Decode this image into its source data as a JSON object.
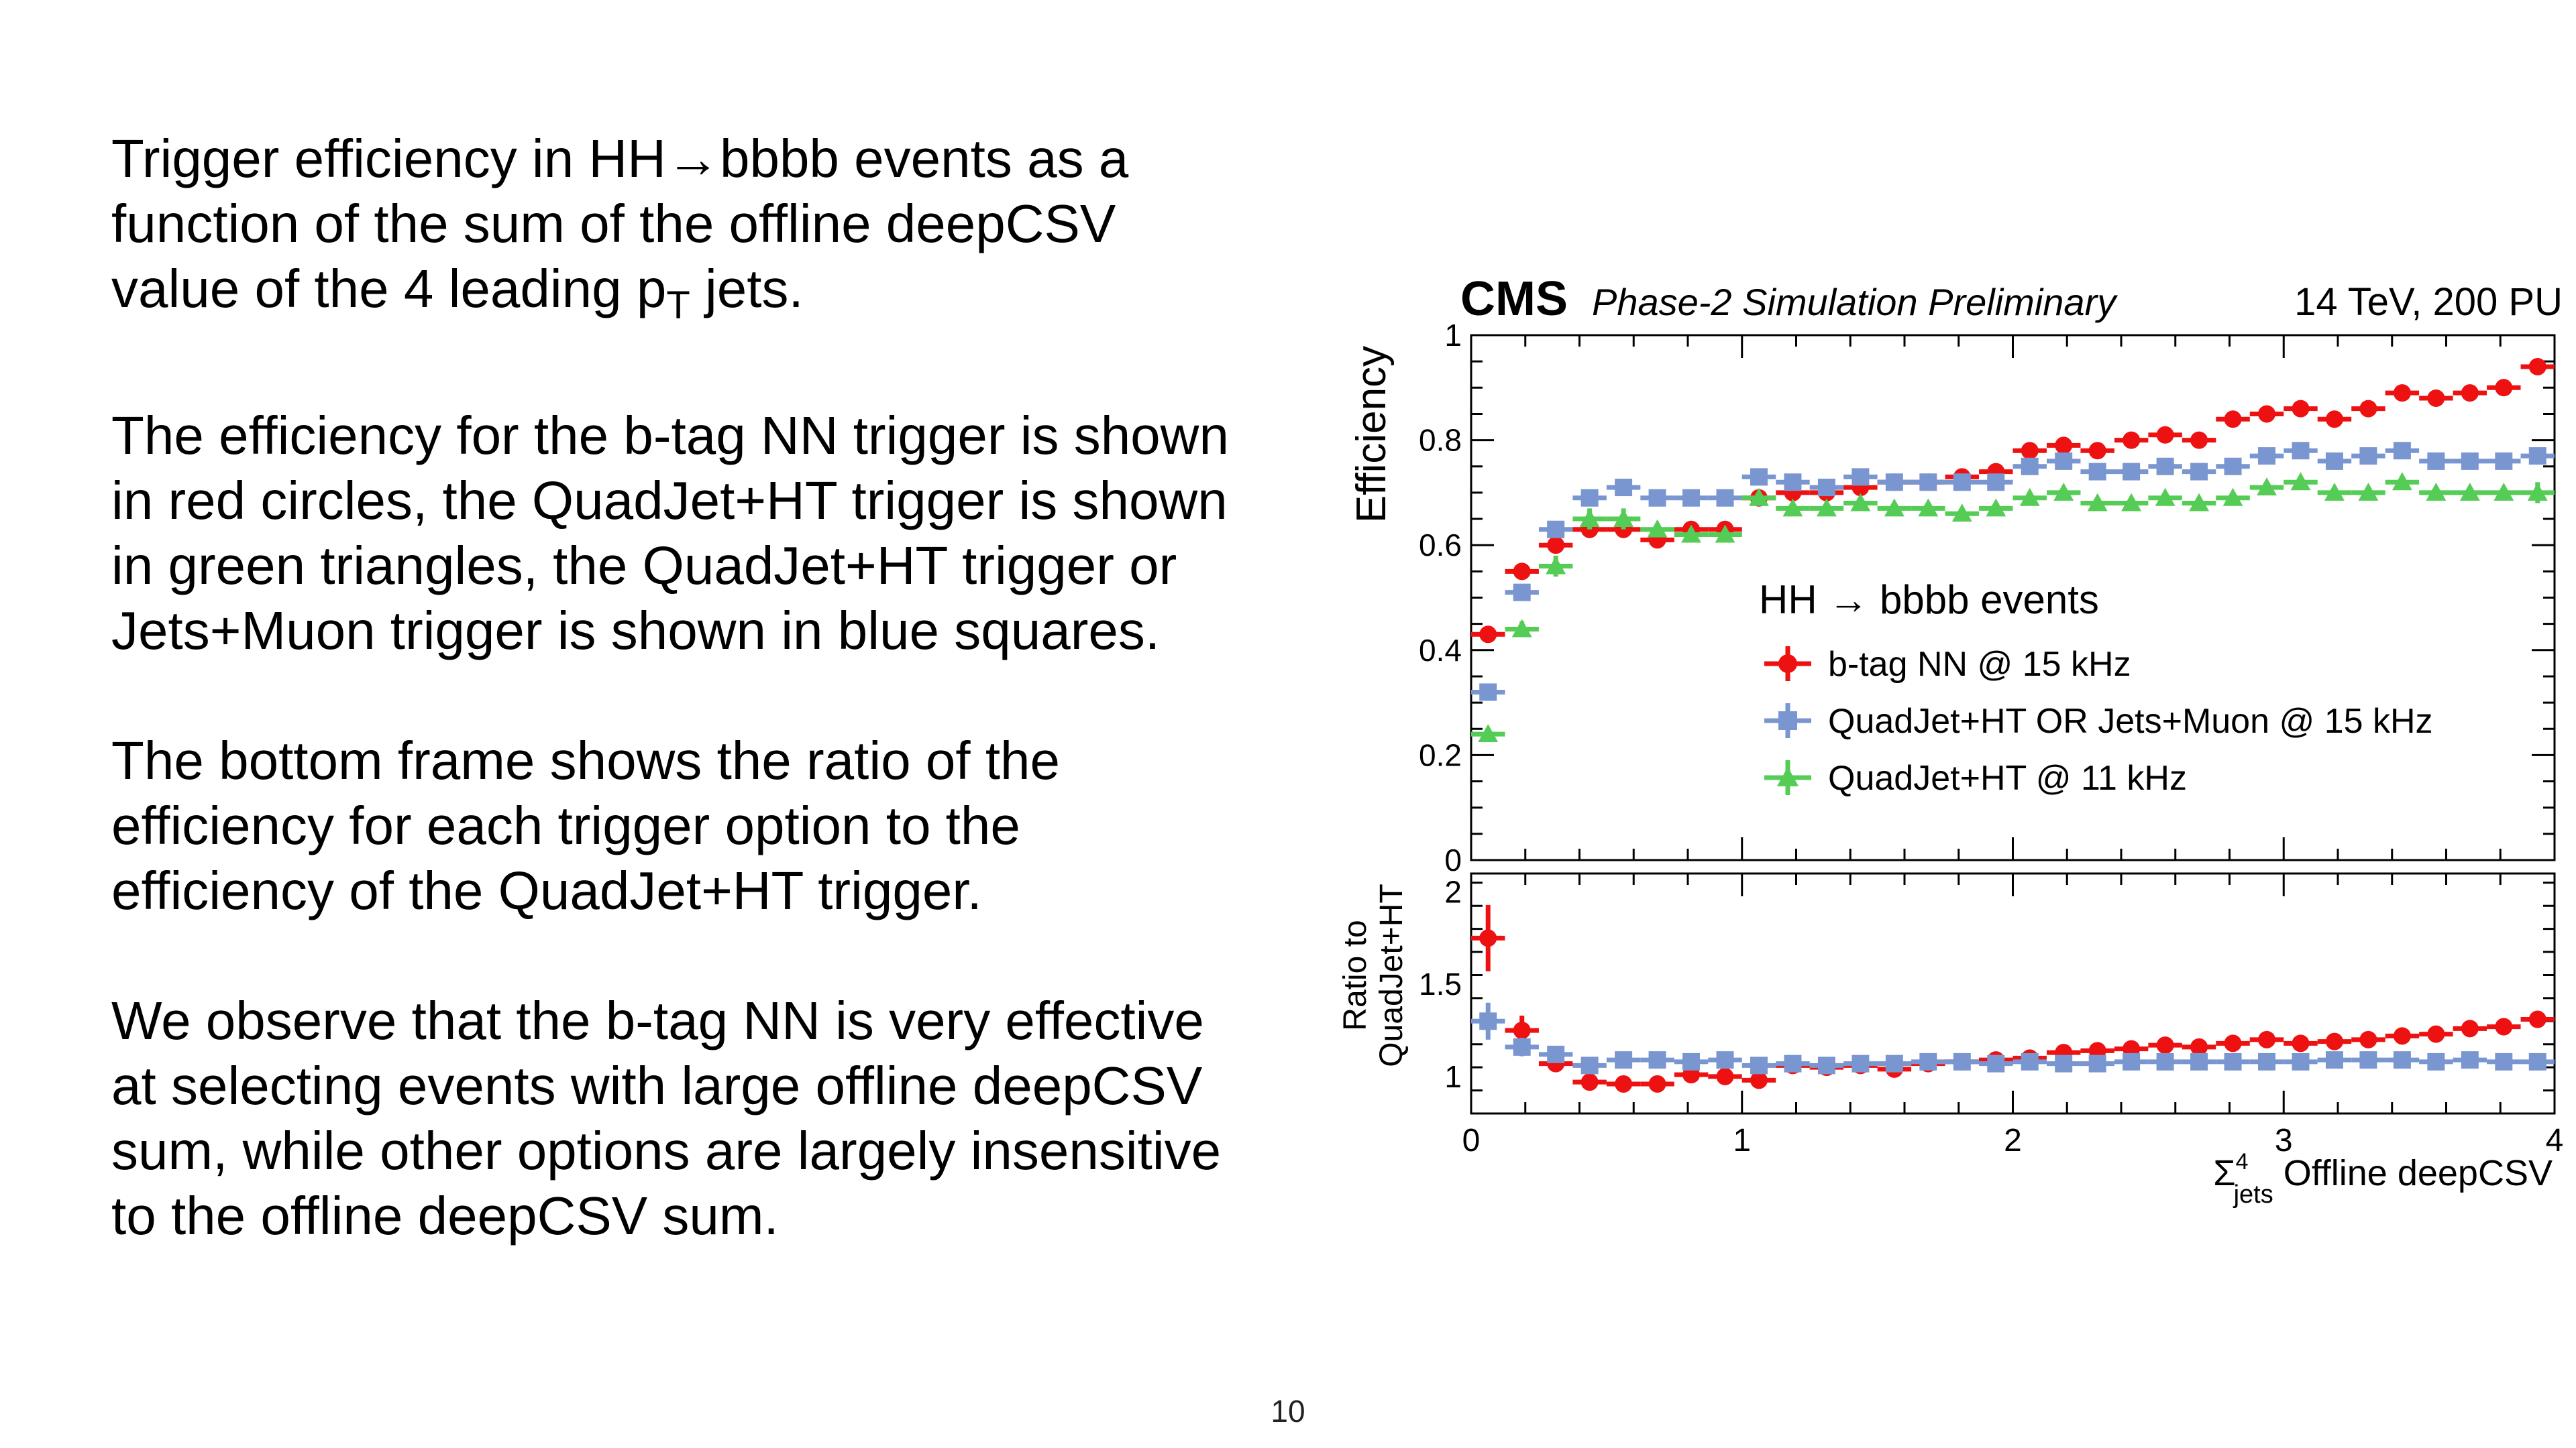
{
  "slide": {
    "paragraphs": [
      {
        "before": "Trigger efficiency in HH→bbbb events as a function of the sum of the offline deepCSV value of the 4 leading p",
        "sub": "T",
        "after": " jets."
      },
      {
        "before": "The efficiency for the b-tag NN trigger is shown in red circles, the QuadJet+HT trigger is shown in green triangles, the QuadJet+HT trigger or Jets+Muon trigger is shown in blue squares.",
        "sub": "",
        "after": ""
      },
      {
        "before": "The bottom frame shows the ratio of the efficiency for each trigger option to the efficiency of the QuadJet+HT trigger.",
        "sub": "",
        "after": ""
      },
      {
        "before": "We observe that the b-tag NN is very effective at selecting events with large offline deepCSV sum, while other options are largely insensitive to the offline deepCSV sum.",
        "sub": "",
        "after": ""
      }
    ],
    "page_number": "10"
  },
  "chart_data": {
    "type": "scatter",
    "header": {
      "experiment": "CMS",
      "subtitle": "Phase-2 Simulation Preliminary",
      "conditions": "14 TeV, 200 PU"
    },
    "legend_title": "HH → bbbb events",
    "legend_position": "center",
    "xlabel": "Σjets4 Offline deepCSV",
    "xlabel_parts": {
      "sigma": "Σ",
      "sup": "4",
      "sub": "jets",
      "rest": " Offline deepCSV"
    },
    "xlim": [
      0,
      4
    ],
    "x_bin_width": 0.125,
    "x_ticks": [
      "0",
      "1",
      "2",
      "3",
      "4"
    ],
    "x_tick_values": [
      0,
      1,
      2,
      3,
      4
    ],
    "x": [
      0.0625,
      0.1875,
      0.3125,
      0.4375,
      0.5625,
      0.6875,
      0.8125,
      0.9375,
      1.0625,
      1.1875,
      1.3125,
      1.4375,
      1.5625,
      1.6875,
      1.8125,
      1.9375,
      2.0625,
      2.1875,
      2.3125,
      2.4375,
      2.5625,
      2.6875,
      2.8125,
      2.9375,
      3.0625,
      3.1875,
      3.3125,
      3.4375,
      3.5625,
      3.6875,
      3.8125,
      3.9375
    ],
    "top_panel": {
      "ylabel": "Efficiency",
      "ylim": [
        0,
        1
      ],
      "y_ticks": [
        "0",
        "0.2",
        "0.4",
        "0.6",
        "0.8",
        "1"
      ],
      "y_tick_values": [
        0,
        0.2,
        0.4,
        0.6,
        0.8,
        1
      ],
      "series": [
        {
          "name": "b-tag NN @ 15 kHz",
          "color": "#ee1111",
          "marker": "circle",
          "values": [
            0.43,
            0.55,
            0.6,
            0.63,
            0.63,
            0.61,
            0.63,
            0.63,
            0.69,
            0.7,
            0.7,
            0.71,
            0.72,
            0.72,
            0.73,
            0.74,
            0.78,
            0.79,
            0.78,
            0.8,
            0.81,
            0.8,
            0.84,
            0.85,
            0.86,
            0.84,
            0.86,
            0.89,
            0.88,
            0.89,
            0.9,
            0.94
          ],
          "errors": [
            0.012,
            0.012,
            0.01,
            0.01,
            0.01,
            0.01,
            0.01,
            0.01,
            0.01,
            0.01,
            0.01,
            0.01,
            0.01,
            0.01,
            0.01,
            0.01,
            0.01,
            0.01,
            0.01,
            0.01,
            0.01,
            0.01,
            0.01,
            0.01,
            0.01,
            0.01,
            0.01,
            0.01,
            0.01,
            0.01,
            0.01,
            0.01
          ]
        },
        {
          "name": "QuadJet+HT OR Jets+Muon @ 15 kHz",
          "color": "#7a96d0",
          "marker": "square",
          "values": [
            0.32,
            0.51,
            0.63,
            0.69,
            0.71,
            0.69,
            0.69,
            0.69,
            0.73,
            0.72,
            0.71,
            0.73,
            0.72,
            0.72,
            0.72,
            0.72,
            0.75,
            0.76,
            0.74,
            0.74,
            0.75,
            0.74,
            0.75,
            0.77,
            0.78,
            0.76,
            0.77,
            0.78,
            0.76,
            0.76,
            0.76,
            0.77
          ],
          "errors": [
            0.015,
            0.015,
            0.012,
            0.01,
            0.01,
            0.01,
            0.01,
            0.01,
            0.01,
            0.01,
            0.01,
            0.01,
            0.01,
            0.01,
            0.01,
            0.01,
            0.01,
            0.01,
            0.01,
            0.01,
            0.01,
            0.01,
            0.01,
            0.01,
            0.01,
            0.01,
            0.01,
            0.01,
            0.01,
            0.01,
            0.01,
            0.015
          ]
        },
        {
          "name": "QuadJet+HT @ 11 kHz",
          "color": "#55cc55",
          "marker": "triangle",
          "values": [
            0.24,
            0.44,
            0.56,
            0.65,
            0.65,
            0.63,
            0.62,
            0.62,
            0.69,
            0.67,
            0.67,
            0.68,
            0.67,
            0.67,
            0.66,
            0.67,
            0.69,
            0.7,
            0.68,
            0.68,
            0.69,
            0.68,
            0.69,
            0.71,
            0.72,
            0.7,
            0.7,
            0.72,
            0.7,
            0.7,
            0.7,
            0.7
          ],
          "errors": [
            0.012,
            0.015,
            0.02,
            0.02,
            0.02,
            0.012,
            0.012,
            0.012,
            0.01,
            0.01,
            0.01,
            0.01,
            0.01,
            0.01,
            0.01,
            0.01,
            0.01,
            0.01,
            0.01,
            0.01,
            0.01,
            0.01,
            0.01,
            0.01,
            0.01,
            0.01,
            0.01,
            0.01,
            0.01,
            0.01,
            0.01,
            0.02
          ]
        }
      ]
    },
    "ratio_panel": {
      "ylabel_lines": [
        "Ratio to",
        "QuadJet+HT"
      ],
      "ylim": [
        0.8,
        2.1
      ],
      "y_ticks": [
        "1",
        "1.5",
        "2"
      ],
      "y_tick_values": [
        1,
        1.5,
        2
      ],
      "series": [
        {
          "name": "b-tag NN @ 15 kHz",
          "color": "#ee1111",
          "marker": "circle",
          "values": [
            1.75,
            1.25,
            1.07,
            0.97,
            0.96,
            0.96,
            1.01,
            1.0,
            0.98,
            1.06,
            1.05,
            1.06,
            1.04,
            1.07,
            1.08,
            1.09,
            1.1,
            1.13,
            1.14,
            1.15,
            1.17,
            1.16,
            1.18,
            1.2,
            1.18,
            1.19,
            1.2,
            1.22,
            1.23,
            1.26,
            1.27,
            1.31
          ],
          "errors": [
            0.18,
            0.08,
            0.04,
            0.03,
            0.02,
            0.02,
            0.02,
            0.02,
            0.02,
            0.02,
            0.02,
            0.02,
            0.02,
            0.02,
            0.02,
            0.02,
            0.02,
            0.02,
            0.02,
            0.02,
            0.02,
            0.02,
            0.02,
            0.02,
            0.02,
            0.02,
            0.02,
            0.02,
            0.02,
            0.02,
            0.02,
            0.02
          ]
        },
        {
          "name": "QuadJet+HT OR Jets+Muon @ 15 kHz",
          "color": "#7a96d0",
          "marker": "square",
          "values": [
            1.3,
            1.16,
            1.12,
            1.06,
            1.09,
            1.09,
            1.08,
            1.09,
            1.06,
            1.07,
            1.06,
            1.07,
            1.07,
            1.08,
            1.08,
            1.07,
            1.08,
            1.07,
            1.07,
            1.08,
            1.08,
            1.08,
            1.08,
            1.08,
            1.08,
            1.09,
            1.09,
            1.09,
            1.08,
            1.09,
            1.08,
            1.08
          ],
          "errors": [
            0.1,
            0.05,
            0.03,
            0.02,
            0.02,
            0.02,
            0.02,
            0.02,
            0.02,
            0.02,
            0.02,
            0.02,
            0.02,
            0.02,
            0.02,
            0.02,
            0.02,
            0.02,
            0.02,
            0.02,
            0.02,
            0.02,
            0.02,
            0.02,
            0.02,
            0.02,
            0.02,
            0.02,
            0.02,
            0.02,
            0.02,
            0.02
          ]
        }
      ]
    }
  }
}
